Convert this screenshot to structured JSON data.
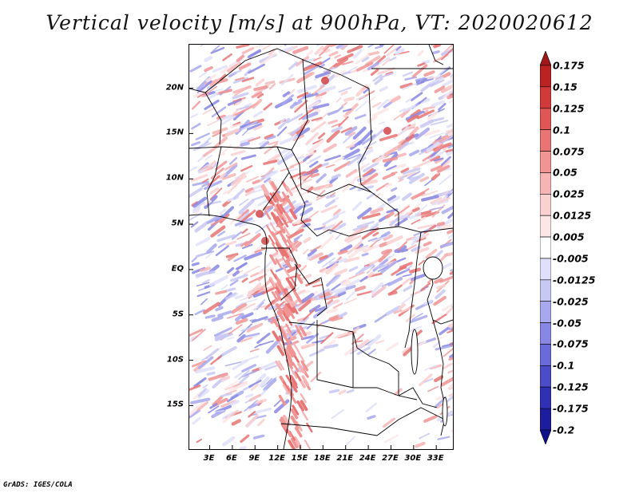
{
  "title": "Vertical velocity [m/s] at 900hPa, VT: 2020020612",
  "credit": "GrADS: IGES/COLA",
  "map": {
    "lat_labels": [
      "20N",
      "15N",
      "10N",
      "5N",
      "EQ",
      "5S",
      "10S",
      "15S"
    ],
    "lat_values": [
      20,
      15,
      10,
      5,
      0,
      -5,
      -10,
      -15
    ],
    "lon_labels": [
      "3E",
      "6E",
      "9E",
      "12E",
      "15E",
      "18E",
      "21E",
      "24E",
      "27E",
      "30E",
      "33E"
    ],
    "lon_values": [
      3,
      6,
      9,
      12,
      15,
      18,
      21,
      24,
      27,
      30,
      33
    ],
    "lat_range": [
      -19.8,
      24.8
    ],
    "lon_range": [
      0.3,
      35.2
    ]
  },
  "colorbar": {
    "labels": [
      "0.175",
      "0.15",
      "0.125",
      "0.1",
      "0.075",
      "0.05",
      "0.025",
      "0.0125",
      "0.005",
      "-0.005",
      "-0.0125",
      "-0.025",
      "-0.05",
      "-0.075",
      "-0.1",
      "-0.125",
      "-0.175",
      "-0.2"
    ],
    "colors": [
      "#a01818",
      "#bb2222",
      "#d03a3a",
      "#e05656",
      "#e87474",
      "#f09494",
      "#f6b4b4",
      "#fad0d0",
      "#fde6e6",
      "#ffffff",
      "#e0e0fa",
      "#c8c8f4",
      "#a8a8ee",
      "#8888e4",
      "#6a6ad8",
      "#4c4cc8",
      "#3030b4",
      "#1c1c9c",
      "#10108a"
    ],
    "top_color": "#a01818",
    "bottom_color": "#10108a"
  }
}
